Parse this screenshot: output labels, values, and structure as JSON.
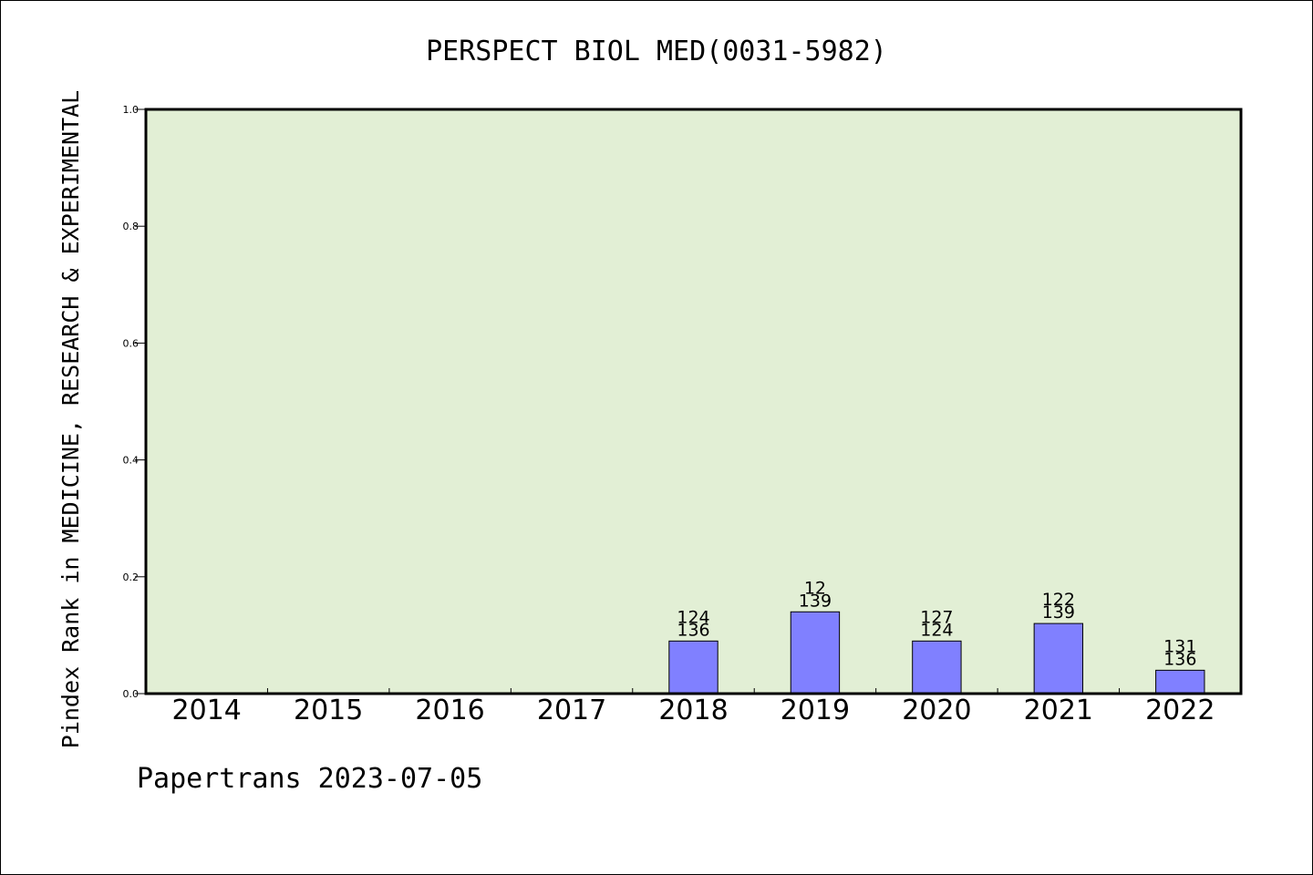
{
  "colors": {
    "plot_background": "#e2efd5",
    "bar_fill": "#8080ff",
    "bar_stroke": "#000000",
    "axis": "#000000"
  },
  "footer": {
    "text": "Papertrans 2023-07-05"
  },
  "chart_data": {
    "type": "bar",
    "title": "PERSPECT BIOL MED(0031-5982)",
    "xlabel": "",
    "ylabel": "Pindex Rank in MEDICINE, RESEARCH & EXPERIMENTAL",
    "categories": [
      "2014",
      "2015",
      "2016",
      "2017",
      "2018",
      "2019",
      "2020",
      "2021",
      "2022"
    ],
    "values": [
      0,
      0,
      0,
      0,
      0.09,
      0.14,
      0.09,
      0.12,
      0.04
    ],
    "data_labels": [
      null,
      null,
      null,
      null,
      {
        "top": "124",
        "bottom": "136"
      },
      {
        "top": "12",
        "bottom": "139"
      },
      {
        "top": "127",
        "bottom": "124"
      },
      {
        "top": "122",
        "bottom": "139"
      },
      {
        "top": "131",
        "bottom": "136"
      }
    ],
    "ylim": [
      0,
      1.0
    ],
    "yticks": [
      "0.0",
      "0.2",
      "0.4",
      "0.6",
      "0.8",
      "1.0"
    ],
    "grid": false,
    "legend": "none"
  }
}
